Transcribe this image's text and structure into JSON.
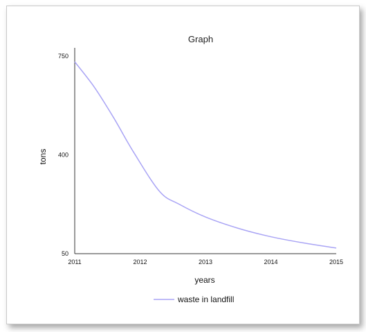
{
  "chart_data": {
    "type": "line",
    "title": "Graph",
    "xlabel": "years",
    "ylabel": "tons",
    "x_ticks": [
      "2011",
      "2012",
      "2013",
      "2014",
      "2015"
    ],
    "y_ticks": [
      "750",
      "400",
      "50"
    ],
    "xlim": [
      2011,
      2015
    ],
    "ylim": [
      50,
      750
    ],
    "grid": false,
    "legend_position": "bottom",
    "series": [
      {
        "name": "waste in landfill",
        "color": "#a9a4f5",
        "x": [
          2011,
          2011.3,
          2011.6,
          2011.9,
          2012.3,
          2012.6,
          2013,
          2013.5,
          2014,
          2014.5,
          2015
        ],
        "y": [
          730,
          640,
          530,
          410,
          270,
          225,
          180,
          140,
          110,
          88,
          70
        ]
      }
    ]
  }
}
